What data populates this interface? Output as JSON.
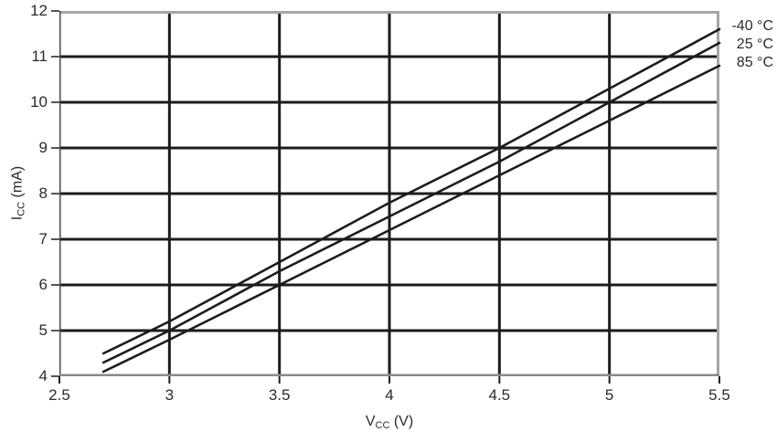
{
  "figure": {
    "xlabel": {
      "main": "V",
      "sub": "CC",
      "unit": " (V)"
    },
    "ylabel": {
      "main": "I",
      "sub": "CC",
      "unit": " (mA)"
    }
  },
  "colors": {
    "line": "#1c1c1c",
    "grid": "#1c1c1c",
    "border_gray": "#a6a6a6",
    "axis_dark": "#4a4a4a",
    "axis_bottom": "#8a8a8a",
    "tick": "#1c1c1c",
    "text": "#2b2b2b",
    "background": "#ffffff"
  },
  "chart_data": {
    "type": "line",
    "title": "",
    "xlabel": "VCC (V)",
    "ylabel": "ICC (mA)",
    "xlim": [
      2.5,
      5.5
    ],
    "ylim": [
      4,
      12
    ],
    "xticks": [
      2.5,
      3,
      3.5,
      4,
      4.5,
      5,
      5.5
    ],
    "yticks": [
      4,
      5,
      6,
      7,
      8,
      9,
      10,
      11,
      12
    ],
    "grid": true,
    "legend_position": "top-right-outside",
    "x": [
      2.7,
      3.0,
      3.5,
      4.0,
      4.5,
      5.0,
      5.5
    ],
    "series": [
      {
        "name": "-40 °C",
        "values": [
          4.5,
          5.2,
          6.5,
          7.8,
          9.0,
          10.3,
          11.6
        ]
      },
      {
        "name": "25 °C",
        "values": [
          4.3,
          5.0,
          6.3,
          7.5,
          8.7,
          10.0,
          11.3
        ]
      },
      {
        "name": "85 °C",
        "values": [
          4.1,
          4.8,
          6.0,
          7.2,
          8.4,
          9.6,
          10.8
        ]
      }
    ]
  }
}
